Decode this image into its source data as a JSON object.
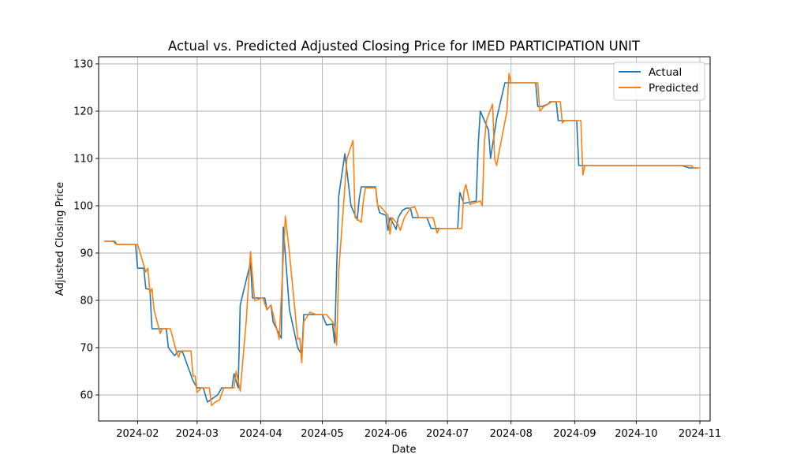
{
  "chart_data": {
    "type": "line",
    "title": "Actual vs. Predicted Adjusted Closing Price for IMED PARTICIPATION UNIT",
    "xlabel": "Date",
    "ylabel": "Adjusted Closing Price",
    "xlim": [
      "2024-01-13",
      "2024-11-06"
    ],
    "ylim": [
      54.5,
      131.5
    ],
    "x_ticks": [
      "2024-02-01",
      "2024-03-01",
      "2024-04-01",
      "2024-05-01",
      "2024-06-01",
      "2024-07-01",
      "2024-08-01",
      "2024-09-01",
      "2024-10-01",
      "2024-11-01"
    ],
    "x_tick_labels": [
      "2024-02",
      "2024-03",
      "2024-04",
      "2024-05",
      "2024-06",
      "2024-07",
      "2024-08",
      "2024-09",
      "2024-10",
      "2024-11"
    ],
    "y_ticks": [
      60,
      70,
      80,
      90,
      100,
      110,
      120,
      130
    ],
    "grid": true,
    "legend_position": "upper right",
    "series": [
      {
        "name": "Actual",
        "color": "#1f77b4",
        "points": [
          [
            "2024-01-16",
            92.5
          ],
          [
            "2024-01-20",
            92.5
          ],
          [
            "2024-01-22",
            91.8
          ],
          [
            "2024-01-31",
            91.8
          ],
          [
            "2024-02-01",
            86.8
          ],
          [
            "2024-02-04",
            86.8
          ],
          [
            "2024-02-05",
            82.5
          ],
          [
            "2024-02-07",
            82.3
          ],
          [
            "2024-02-08",
            74.0
          ],
          [
            "2024-02-15",
            74.0
          ],
          [
            "2024-02-16",
            70.0
          ],
          [
            "2024-02-19",
            68.3
          ],
          [
            "2024-02-21",
            69.3
          ],
          [
            "2024-02-23",
            69.0
          ],
          [
            "2024-02-28",
            63.0
          ],
          [
            "2024-03-01",
            61.5
          ],
          [
            "2024-03-04",
            61.5
          ],
          [
            "2024-03-06",
            58.5
          ],
          [
            "2024-03-11",
            60.0
          ],
          [
            "2024-03-13",
            61.5
          ],
          [
            "2024-03-18",
            61.5
          ],
          [
            "2024-03-19",
            64.5
          ],
          [
            "2024-03-21",
            61.5
          ],
          [
            "2024-03-22",
            79.0
          ],
          [
            "2024-03-27",
            88.0
          ],
          [
            "2024-03-28",
            80.5
          ],
          [
            "2024-04-03",
            80.5
          ],
          [
            "2024-04-04",
            78.0
          ],
          [
            "2024-04-06",
            79.0
          ],
          [
            "2024-04-07",
            75.5
          ],
          [
            "2024-04-11",
            72.0
          ],
          [
            "2024-04-12",
            95.5
          ],
          [
            "2024-04-15",
            78.0
          ],
          [
            "2024-04-18",
            72.0
          ],
          [
            "2024-04-19",
            70.0
          ],
          [
            "2024-04-21",
            68.5
          ],
          [
            "2024-04-22",
            77.0
          ],
          [
            "2024-05-01",
            77.0
          ],
          [
            "2024-05-03",
            74.8
          ],
          [
            "2024-05-06",
            75.0
          ],
          [
            "2024-05-07",
            71.0
          ],
          [
            "2024-05-09",
            102.0
          ],
          [
            "2024-05-12",
            111.0
          ],
          [
            "2024-05-15",
            100.0
          ],
          [
            "2024-05-17",
            98.0
          ],
          [
            "2024-05-18",
            97.0
          ],
          [
            "2024-05-19",
            101.5
          ],
          [
            "2024-05-20",
            104.0
          ],
          [
            "2024-05-27",
            104.0
          ],
          [
            "2024-05-28",
            100.0
          ],
          [
            "2024-05-29",
            98.5
          ],
          [
            "2024-06-01",
            98.0
          ],
          [
            "2024-06-02",
            94.8
          ],
          [
            "2024-06-03",
            97.5
          ],
          [
            "2024-06-06",
            95.0
          ],
          [
            "2024-06-07",
            97.5
          ],
          [
            "2024-06-09",
            99.0
          ],
          [
            "2024-06-11",
            99.5
          ],
          [
            "2024-06-13",
            99.5
          ],
          [
            "2024-06-14",
            97.5
          ],
          [
            "2024-06-21",
            97.5
          ],
          [
            "2024-06-23",
            95.2
          ],
          [
            "2024-07-06",
            95.2
          ],
          [
            "2024-07-07",
            102.8
          ],
          [
            "2024-07-09",
            100.5
          ],
          [
            "2024-07-15",
            101.0
          ],
          [
            "2024-07-16",
            113.0
          ],
          [
            "2024-07-17",
            120.0
          ],
          [
            "2024-07-21",
            116.0
          ],
          [
            "2024-07-22",
            110.0
          ],
          [
            "2024-07-25",
            118.5
          ],
          [
            "2024-07-29",
            126.0
          ],
          [
            "2024-08-13",
            126.0
          ],
          [
            "2024-08-14",
            121.0
          ],
          [
            "2024-08-16",
            121.0
          ],
          [
            "2024-08-19",
            121.5
          ],
          [
            "2024-08-20",
            122.0
          ],
          [
            "2024-08-23",
            122.0
          ],
          [
            "2024-08-24",
            118.0
          ],
          [
            "2024-09-02",
            118.0
          ],
          [
            "2024-09-03",
            108.5
          ],
          [
            "2024-10-17",
            108.5
          ],
          [
            "2024-10-23",
            108.5
          ],
          [
            "2024-10-27",
            108.0
          ],
          [
            "2024-10-31",
            108.0
          ]
        ]
      },
      {
        "name": "Predicted",
        "color": "#ff7f0e",
        "points": [
          [
            "2024-01-16",
            92.5
          ],
          [
            "2024-01-21",
            92.5
          ],
          [
            "2024-01-22",
            91.8
          ],
          [
            "2024-02-01",
            91.8
          ],
          [
            "2024-02-05",
            86.0
          ],
          [
            "2024-02-06",
            86.8
          ],
          [
            "2024-02-07",
            81.5
          ],
          [
            "2024-02-08",
            82.5
          ],
          [
            "2024-02-09",
            78.0
          ],
          [
            "2024-02-12",
            73.0
          ],
          [
            "2024-02-13",
            74.0
          ],
          [
            "2024-02-17",
            74.0
          ],
          [
            "2024-02-20",
            69.0
          ],
          [
            "2024-02-21",
            68.0
          ],
          [
            "2024-02-22",
            69.3
          ],
          [
            "2024-02-27",
            69.3
          ],
          [
            "2024-02-28",
            64.0
          ],
          [
            "2024-02-29",
            64.0
          ],
          [
            "2024-03-01",
            60.5
          ],
          [
            "2024-03-03",
            61.5
          ],
          [
            "2024-03-07",
            61.5
          ],
          [
            "2024-03-08",
            57.8
          ],
          [
            "2024-03-10",
            58.5
          ],
          [
            "2024-03-12",
            59.0
          ],
          [
            "2024-03-14",
            61.5
          ],
          [
            "2024-03-19",
            61.5
          ],
          [
            "2024-03-20",
            65.0
          ],
          [
            "2024-03-22",
            60.8
          ],
          [
            "2024-03-25",
            76.0
          ],
          [
            "2024-03-27",
            90.3
          ],
          [
            "2024-03-29",
            80.0
          ],
          [
            "2024-03-30",
            80.0
          ],
          [
            "2024-04-01",
            80.5
          ],
          [
            "2024-04-02",
            80.5
          ],
          [
            "2024-04-04",
            78.0
          ],
          [
            "2024-04-06",
            79.0
          ],
          [
            "2024-04-10",
            71.8
          ],
          [
            "2024-04-13",
            97.8
          ],
          [
            "2024-04-15",
            90.0
          ],
          [
            "2024-04-19",
            71.8
          ],
          [
            "2024-04-20",
            72.0
          ],
          [
            "2024-04-21",
            66.8
          ],
          [
            "2024-04-22",
            75.5
          ],
          [
            "2024-04-25",
            77.5
          ],
          [
            "2024-04-28",
            77.0
          ],
          [
            "2024-05-03",
            77.0
          ],
          [
            "2024-05-06",
            75.5
          ],
          [
            "2024-05-07",
            74.5
          ],
          [
            "2024-05-08",
            70.5
          ],
          [
            "2024-05-09",
            86.0
          ],
          [
            "2024-05-13",
            110.0
          ],
          [
            "2024-05-16",
            113.8
          ],
          [
            "2024-05-17",
            97.5
          ],
          [
            "2024-05-20",
            96.5
          ],
          [
            "2024-05-21",
            101.0
          ],
          [
            "2024-05-22",
            103.8
          ],
          [
            "2024-05-27",
            103.8
          ],
          [
            "2024-05-28",
            99.8
          ],
          [
            "2024-05-29",
            100.0
          ],
          [
            "2024-06-01",
            98.5
          ],
          [
            "2024-06-02",
            98.0
          ],
          [
            "2024-06-03",
            94.0
          ],
          [
            "2024-06-04",
            97.5
          ],
          [
            "2024-06-07",
            96.0
          ],
          [
            "2024-06-08",
            94.8
          ],
          [
            "2024-06-10",
            97.5
          ],
          [
            "2024-06-13",
            99.5
          ],
          [
            "2024-06-15",
            99.8
          ],
          [
            "2024-06-17",
            97.5
          ],
          [
            "2024-06-24",
            97.5
          ],
          [
            "2024-06-26",
            94.2
          ],
          [
            "2024-06-27",
            95.2
          ],
          [
            "2024-07-08",
            95.2
          ],
          [
            "2024-07-09",
            103.0
          ],
          [
            "2024-07-10",
            104.5
          ],
          [
            "2024-07-12",
            100.3
          ],
          [
            "2024-07-17",
            101.0
          ],
          [
            "2024-07-18",
            100.0
          ],
          [
            "2024-07-19",
            113.5
          ],
          [
            "2024-07-20",
            118.0
          ],
          [
            "2024-07-23",
            121.5
          ],
          [
            "2024-07-24",
            110.0
          ],
          [
            "2024-07-25",
            108.5
          ],
          [
            "2024-07-26",
            111.0
          ],
          [
            "2024-07-30",
            120.0
          ],
          [
            "2024-07-31",
            128.0
          ],
          [
            "2024-08-01",
            126.0
          ],
          [
            "2024-08-14",
            126.0
          ],
          [
            "2024-08-15",
            120.0
          ],
          [
            "2024-08-17",
            121.0
          ],
          [
            "2024-08-21",
            122.0
          ],
          [
            "2024-08-25",
            122.0
          ],
          [
            "2024-08-26",
            117.5
          ],
          [
            "2024-08-27",
            118.0
          ],
          [
            "2024-09-04",
            118.0
          ],
          [
            "2024-09-05",
            106.5
          ],
          [
            "2024-09-06",
            108.5
          ],
          [
            "2024-10-23",
            108.5
          ],
          [
            "2024-10-28",
            108.5
          ],
          [
            "2024-10-29",
            108.0
          ],
          [
            "2024-11-01",
            108.0
          ]
        ]
      }
    ]
  }
}
